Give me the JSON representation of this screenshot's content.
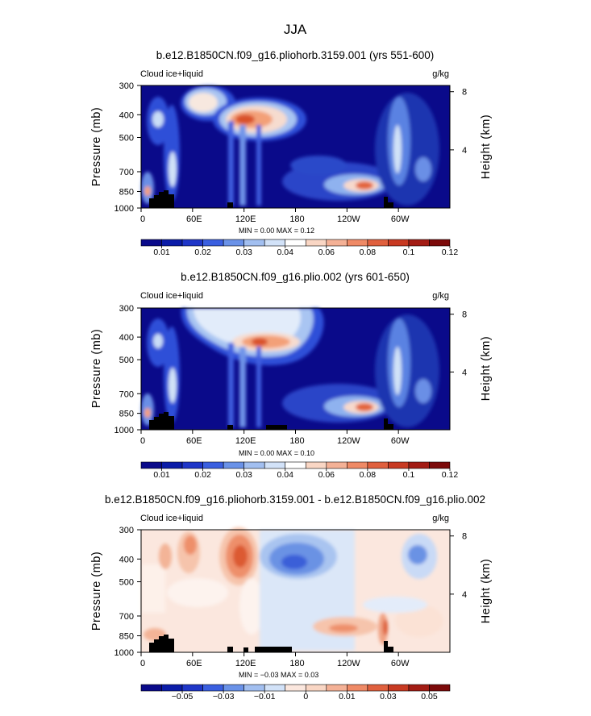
{
  "figure_title": "JJA",
  "colors": {
    "sequential_scale": [
      "#0a0a8a",
      "#0b1ca8",
      "#1f36c8",
      "#3a5fe0",
      "#6a92e8",
      "#a2bff0",
      "#d2e2f8",
      "#ffffff",
      "#f9d6c4",
      "#f4b196",
      "#ef8a66",
      "#e0603e",
      "#c83a22",
      "#a31c14",
      "#7c0a0a"
    ],
    "diverging_scale": [
      "#0a0a8a",
      "#0b1ca8",
      "#1f36c8",
      "#3a5fe0",
      "#6a92e8",
      "#a2bff0",
      "#d2e2f8",
      "#fbe7de",
      "#f9d6c4",
      "#f4b196",
      "#ef8a66",
      "#e0603e",
      "#c83a22",
      "#a31c14",
      "#7c0a0a"
    ]
  },
  "chart_data": [
    {
      "type": "heatmap",
      "title": "b.e12.B1850CN.f09_g16.pliohorb.3159.001 (yrs 551-600)",
      "variable": "Cloud ice+liquid",
      "units": "g/kg",
      "ylabel": "Pressure (mb)",
      "ylabel_right": "Height (km)",
      "xlabel": "",
      "pressure_ticks": [
        {
          "value": 300,
          "label": "300"
        },
        {
          "value": 400,
          "label": "400"
        },
        {
          "value": 500,
          "label": "500"
        },
        {
          "value": 700,
          "label": "700"
        },
        {
          "value": 850,
          "label": "850"
        },
        {
          "value": 1000,
          "label": "1000"
        }
      ],
      "height_ticks": [
        {
          "value": 8,
          "label": "8"
        },
        {
          "value": 4,
          "label": "4"
        }
      ],
      "longitude_ticks": [
        {
          "value": 0,
          "label": "0"
        },
        {
          "value": 60,
          "label": "60E"
        },
        {
          "value": 120,
          "label": "120E"
        },
        {
          "value": 180,
          "label": "180"
        },
        {
          "value": 240,
          "label": "120W"
        },
        {
          "value": 300,
          "label": "60W"
        }
      ],
      "xlim": [
        0,
        360
      ],
      "ylim": [
        1000,
        300
      ],
      "minmax": "MIN =    0.00   MAX =    0.12",
      "min": 0.0,
      "max": 0.12,
      "colorbar_scale": "sequential_scale",
      "colorbar_levels": 15,
      "colorbar_labels": [
        {
          "level": 1,
          "label": "0.01"
        },
        {
          "level": 3,
          "label": "0.02"
        },
        {
          "level": 5,
          "label": "0.03"
        },
        {
          "level": 7,
          "label": "0.04"
        },
        {
          "level": 9,
          "label": "0.06"
        },
        {
          "level": 11,
          "label": "0.08"
        },
        {
          "level": 13,
          "label": "0.1"
        },
        {
          "level": 15,
          "label": "0.12"
        }
      ]
    },
    {
      "type": "heatmap",
      "title": "b.e12.B1850CN.f09_g16.plio.002 (yrs 601-650)",
      "variable": "Cloud ice+liquid",
      "units": "g/kg",
      "ylabel": "Pressure (mb)",
      "ylabel_right": "Height (km)",
      "xlabel": "",
      "pressure_ticks": [
        {
          "value": 300,
          "label": "300"
        },
        {
          "value": 400,
          "label": "400"
        },
        {
          "value": 500,
          "label": "500"
        },
        {
          "value": 700,
          "label": "700"
        },
        {
          "value": 850,
          "label": "850"
        },
        {
          "value": 1000,
          "label": "1000"
        }
      ],
      "height_ticks": [
        {
          "value": 8,
          "label": "8"
        },
        {
          "value": 4,
          "label": "4"
        }
      ],
      "longitude_ticks": [
        {
          "value": 0,
          "label": "0"
        },
        {
          "value": 60,
          "label": "60E"
        },
        {
          "value": 120,
          "label": "120E"
        },
        {
          "value": 180,
          "label": "180"
        },
        {
          "value": 240,
          "label": "120W"
        },
        {
          "value": 300,
          "label": "60W"
        }
      ],
      "xlim": [
        0,
        360
      ],
      "ylim": [
        1000,
        300
      ],
      "minmax": "MIN =    0.00   MAX =    0.10",
      "min": 0.0,
      "max": 0.1,
      "colorbar_scale": "sequential_scale",
      "colorbar_levels": 15,
      "colorbar_labels": [
        {
          "level": 1,
          "label": "0.01"
        },
        {
          "level": 3,
          "label": "0.02"
        },
        {
          "level": 5,
          "label": "0.03"
        },
        {
          "level": 7,
          "label": "0.04"
        },
        {
          "level": 9,
          "label": "0.06"
        },
        {
          "level": 11,
          "label": "0.08"
        },
        {
          "level": 13,
          "label": "0.1"
        },
        {
          "level": 15,
          "label": "0.12"
        }
      ]
    },
    {
      "type": "heatmap",
      "title": "b.e12.B1850CN.f09_g16.pliohorb.3159.001 - b.e12.B1850CN.f09_g16.plio.002",
      "variable": "Cloud ice+liquid",
      "units": "g/kg",
      "ylabel": "Pressure (mb)",
      "ylabel_right": "Height (km)",
      "xlabel": "",
      "pressure_ticks": [
        {
          "value": 300,
          "label": "300"
        },
        {
          "value": 400,
          "label": "400"
        },
        {
          "value": 500,
          "label": "500"
        },
        {
          "value": 700,
          "label": "700"
        },
        {
          "value": 850,
          "label": "850"
        },
        {
          "value": 1000,
          "label": "1000"
        }
      ],
      "height_ticks": [
        {
          "value": 8,
          "label": "8"
        },
        {
          "value": 4,
          "label": "4"
        }
      ],
      "longitude_ticks": [
        {
          "value": 0,
          "label": "0"
        },
        {
          "value": 60,
          "label": "60E"
        },
        {
          "value": 120,
          "label": "120E"
        },
        {
          "value": 180,
          "label": "180"
        },
        {
          "value": 240,
          "label": "120W"
        },
        {
          "value": 300,
          "label": "60W"
        }
      ],
      "xlim": [
        0,
        360
      ],
      "ylim": [
        1000,
        300
      ],
      "minmax": "MIN =   −0.03   MAX =    0.03",
      "min": -0.03,
      "max": 0.03,
      "colorbar_scale": "diverging_scale",
      "colorbar_levels": 15,
      "colorbar_labels": [
        {
          "level": 2,
          "label": "−0.05"
        },
        {
          "level": 4,
          "label": "−0.03"
        },
        {
          "level": 6,
          "label": "−0.01"
        },
        {
          "level": 8,
          "label": "0"
        },
        {
          "level": 10,
          "label": "0.01"
        },
        {
          "level": 12,
          "label": "0.03"
        },
        {
          "level": 14,
          "label": "0.05"
        }
      ]
    }
  ]
}
